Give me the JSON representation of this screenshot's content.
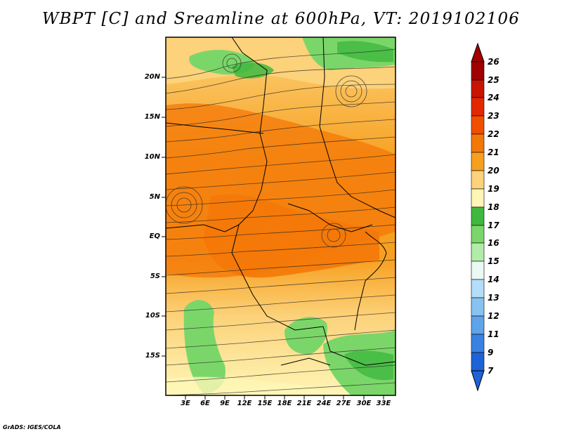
{
  "title": "WBPT [C] and Sreamline at 600hPa, VT: 2019102106",
  "credit": "GrADS: IGES/COLA",
  "map": {
    "lat_labels": [
      "20N",
      "15N",
      "10N",
      "5N",
      "EQ",
      "5S",
      "10S",
      "15S"
    ],
    "lon_labels": [
      "3E",
      "6E",
      "9E",
      "12E",
      "15E",
      "18E",
      "21E",
      "24E",
      "27E",
      "30E",
      "33E"
    ]
  },
  "colorbar": {
    "labels": [
      "26",
      "25",
      "24",
      "23",
      "22",
      "21",
      "20",
      "19",
      "18",
      "17",
      "16",
      "15",
      "14",
      "13",
      "12",
      "11",
      "9",
      "7"
    ],
    "colors": [
      "#a00000",
      "#c81400",
      "#e22800",
      "#f04e00",
      "#f47808",
      "#f7a020",
      "#fcd27a",
      "#fef6b6",
      "#3fb83f",
      "#7bd66a",
      "#b2ecaa",
      "#eaf9f4",
      "#b4ddf8",
      "#88c2f0",
      "#5ea4ea",
      "#3a82e2",
      "#1e62d8"
    ]
  },
  "palette": {
    "warm_dark": "#f47808",
    "warm_mid": "#f7a020",
    "warm_light": "#fcd27a",
    "pale": "#fef6b6",
    "green": "#7bd66a",
    "green_dark": "#3fb83f"
  }
}
